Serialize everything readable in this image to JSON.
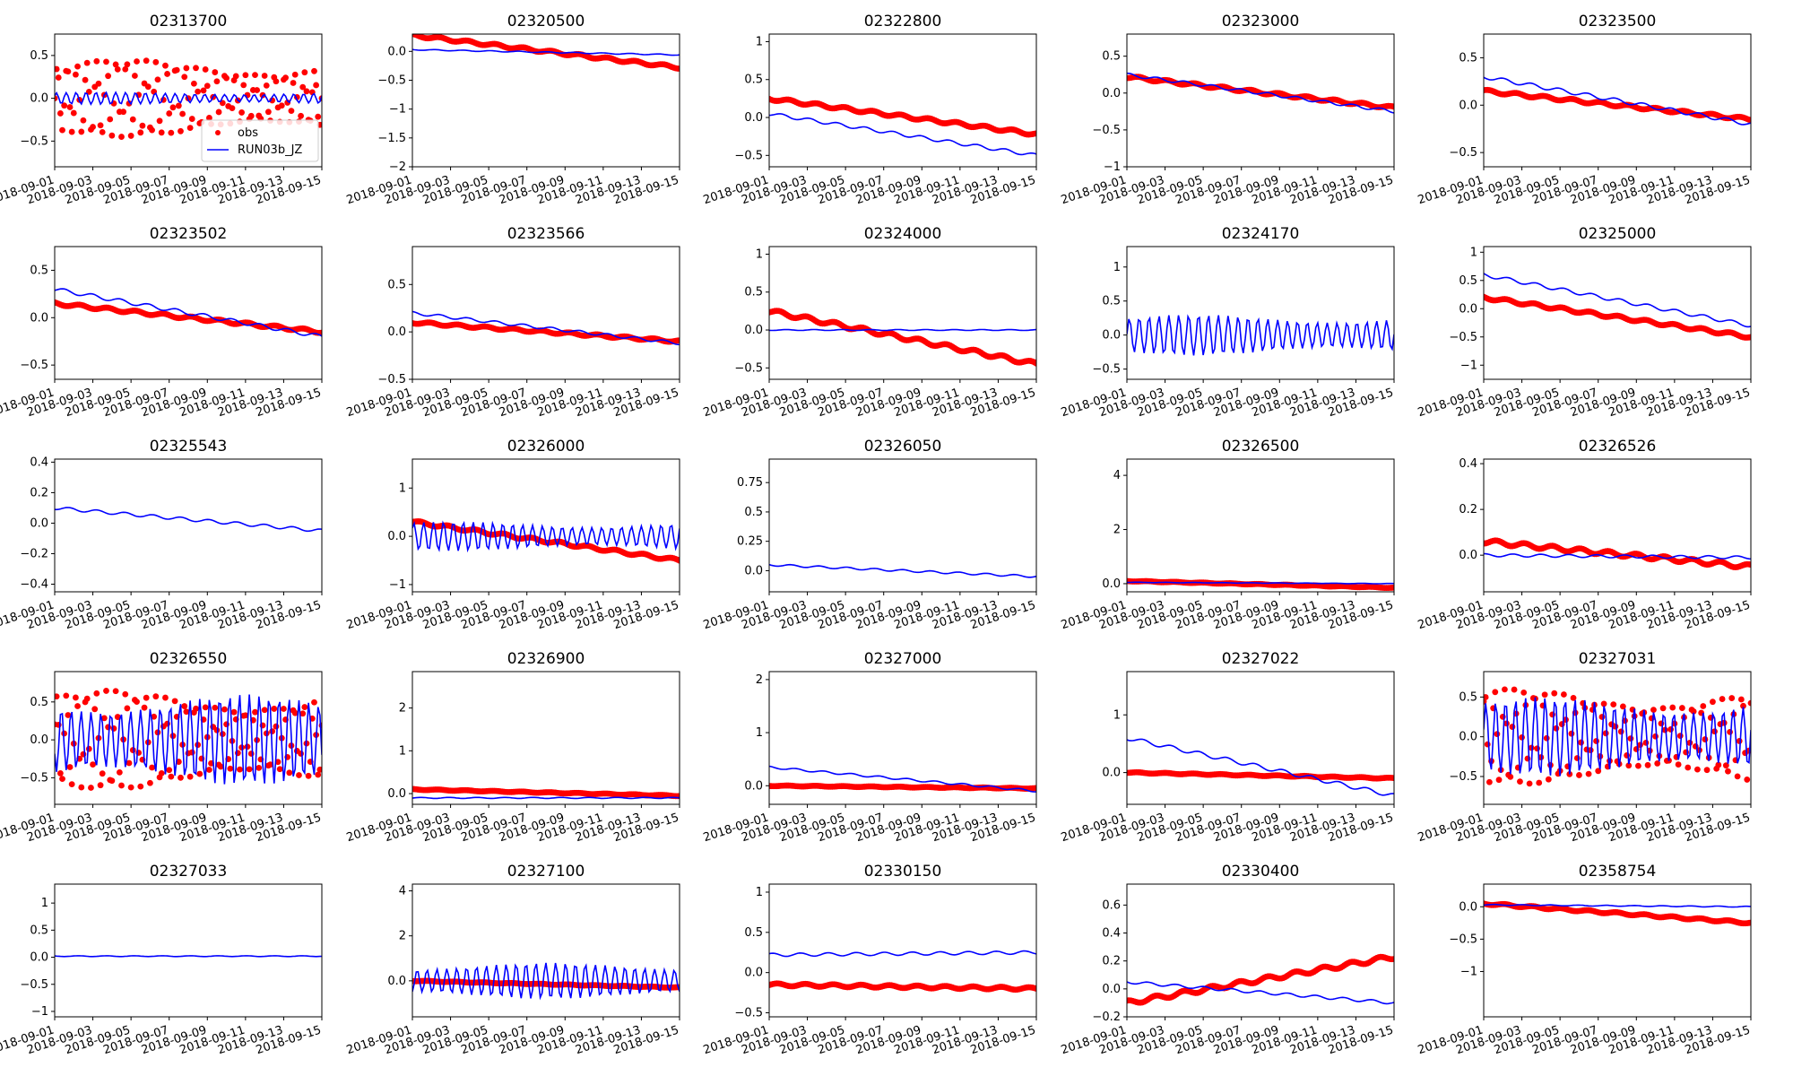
{
  "colors": {
    "obs": "#ff0000",
    "model": "#0000ff",
    "axis": "#000000",
    "background": "#ffffff"
  },
  "x_tick_labels": [
    "2018-09-01",
    "2018-09-03",
    "2018-09-05",
    "2018-09-07",
    "2018-09-09",
    "2018-09-11",
    "2018-09-13",
    "2018-09-15"
  ],
  "legend": {
    "obs": "obs",
    "model": "RUN03b_JZ"
  },
  "chart_data": [
    {
      "type": "line",
      "title": "02313700",
      "ylim": [
        -0.8,
        0.75
      ],
      "yticks": [
        -0.5,
        0,
        0.5
      ],
      "obs_shape": "wave",
      "model_shape": "wave",
      "obs_amp": 0.45,
      "model_amp": 0.07,
      "legend": true
    },
    {
      "type": "line",
      "title": "02320500",
      "ylim": [
        -2.0,
        0.3
      ],
      "yticks": [
        -2.0,
        -1.5,
        -1.0,
        -0.5,
        0.0
      ],
      "obs_start": 0.28,
      "obs_end": -0.28,
      "model_start": 0.03,
      "model_end": -0.06,
      "obs_shape": "trend",
      "model_shape": "trend"
    },
    {
      "type": "line",
      "title": "02322800",
      "ylim": [
        -0.65,
        1.1
      ],
      "yticks": [
        -0.5,
        0.0,
        0.5,
        1.0
      ],
      "obs_start": 0.25,
      "obs_end": -0.22,
      "model_start": 0.05,
      "model_end": -0.5,
      "obs_shape": "trend",
      "model_shape": "trend"
    },
    {
      "type": "line",
      "title": "02323000",
      "ylim": [
        -1.0,
        0.8
      ],
      "yticks": [
        -1.0,
        -0.5,
        0.0,
        0.5
      ],
      "obs_start": 0.22,
      "obs_end": -0.2,
      "model_start": 0.25,
      "model_end": -0.25,
      "obs_shape": "trend",
      "model_shape": "trend"
    },
    {
      "type": "line",
      "title": "02323500",
      "ylim": [
        -0.65,
        0.75
      ],
      "yticks": [
        -0.5,
        0.0,
        0.5
      ],
      "obs_start": 0.15,
      "obs_end": -0.15,
      "model_start": 0.3,
      "model_end": -0.2,
      "obs_shape": "trend",
      "model_shape": "trend"
    },
    {
      "type": "line",
      "title": "02323502",
      "ylim": [
        -0.65,
        0.75
      ],
      "yticks": [
        -0.5,
        0.0,
        0.5
      ],
      "obs_start": 0.15,
      "obs_end": -0.15,
      "model_start": 0.3,
      "model_end": -0.2,
      "obs_shape": "trend",
      "model_shape": "trend"
    },
    {
      "type": "line",
      "title": "02323566",
      "ylim": [
        -0.5,
        0.9
      ],
      "yticks": [
        -0.5,
        0.0,
        0.5
      ],
      "obs_start": 0.1,
      "obs_end": -0.1,
      "model_start": 0.2,
      "model_end": -0.12,
      "obs_shape": "trend",
      "model_shape": "trend"
    },
    {
      "type": "line",
      "title": "02324000",
      "ylim": [
        -0.65,
        1.1
      ],
      "yticks": [
        -0.5,
        0.0,
        0.5,
        1.0
      ],
      "obs_start": 0.25,
      "obs_end": -0.45,
      "model_start": 0.0,
      "model_end": 0.0,
      "obs_shape": "trend",
      "model_shape": "trend"
    },
    {
      "type": "line",
      "title": "02324170",
      "ylim": [
        -0.65,
        1.3
      ],
      "yticks": [
        -0.5,
        0.0,
        0.5,
        1.0
      ],
      "model_shape": "wave",
      "model_amp": 0.3
    },
    {
      "type": "line",
      "title": "02325000",
      "ylim": [
        -1.25,
        1.1
      ],
      "yticks": [
        -1.0,
        -0.5,
        0.0,
        0.5,
        1.0
      ],
      "obs_start": 0.2,
      "obs_end": -0.5,
      "model_start": 0.6,
      "model_end": -0.3,
      "obs_shape": "trend",
      "model_shape": "trend"
    },
    {
      "type": "line",
      "title": "02325543",
      "ylim": [
        -0.45,
        0.42
      ],
      "yticks": [
        -0.4,
        -0.2,
        0.0,
        0.2,
        0.4
      ],
      "model_shape": "trend",
      "model_start": 0.1,
      "model_end": -0.05
    },
    {
      "type": "line",
      "title": "02326000",
      "ylim": [
        -1.15,
        1.6
      ],
      "yticks": [
        -1,
        0,
        1
      ],
      "obs_start": 0.3,
      "obs_end": -0.5,
      "model_shape": "wave",
      "model_amp": 0.3,
      "obs_shape": "trend"
    },
    {
      "type": "line",
      "title": "02326050",
      "ylim": [
        -0.18,
        0.95
      ],
      "yticks": [
        0.0,
        0.25,
        0.5,
        0.75
      ],
      "model_shape": "trend",
      "model_start": 0.05,
      "model_end": -0.05
    },
    {
      "type": "line",
      "title": "02326500",
      "ylim": [
        -0.3,
        4.6
      ],
      "yticks": [
        0,
        2,
        4
      ],
      "obs_start": 0.1,
      "obs_end": -0.15,
      "model_start": 0.05,
      "model_end": 0.0,
      "obs_shape": "trend",
      "model_shape": "trend"
    },
    {
      "type": "line",
      "title": "02326526",
      "ylim": [
        -0.16,
        0.42
      ],
      "yticks": [
        0.0,
        0.2,
        0.4
      ],
      "obs_start": 0.06,
      "obs_end": -0.05,
      "model_start": 0.0,
      "model_end": -0.01,
      "obs_shape": "trend",
      "model_shape": "trend"
    },
    {
      "type": "line",
      "title": "02326550",
      "ylim": [
        -0.85,
        0.9
      ],
      "yticks": [
        -0.5,
        0.0,
        0.5
      ],
      "obs_shape": "wave",
      "model_shape": "wave",
      "obs_amp": 0.65,
      "model_amp": 0.6
    },
    {
      "type": "line",
      "title": "02326900",
      "ylim": [
        -0.25,
        2.85
      ],
      "yticks": [
        0,
        1,
        2
      ],
      "obs_start": 0.1,
      "obs_end": -0.05,
      "model_start": -0.1,
      "model_end": -0.1,
      "obs_shape": "trend",
      "model_shape": "trend"
    },
    {
      "type": "line",
      "title": "02327000",
      "ylim": [
        -0.35,
        2.15
      ],
      "yticks": [
        0,
        1,
        2
      ],
      "obs_start": 0.0,
      "obs_end": -0.05,
      "model_start": 0.35,
      "model_end": -0.1,
      "obs_shape": "trend",
      "model_shape": "trend"
    },
    {
      "type": "line",
      "title": "02327022",
      "ylim": [
        -0.55,
        1.75
      ],
      "yticks": [
        0,
        1
      ],
      "obs_start": 0.0,
      "obs_end": -0.1,
      "model_start": 0.6,
      "model_end": -0.4,
      "obs_shape": "trend",
      "model_shape": "trend"
    },
    {
      "type": "line",
      "title": "02327031",
      "ylim": [
        -0.85,
        0.82
      ],
      "yticks": [
        -0.5,
        0.0,
        0.5
      ],
      "obs_shape": "wave",
      "model_shape": "wave",
      "obs_amp": 0.6,
      "model_amp": 0.5
    },
    {
      "type": "line",
      "title": "02327033",
      "ylim": [
        -1.1,
        1.35
      ],
      "yticks": [
        -1.0,
        -0.5,
        0.0,
        0.5,
        1.0
      ],
      "model_shape": "trend",
      "model_start": 0.02,
      "model_end": 0.02
    },
    {
      "type": "line",
      "title": "02327100",
      "ylim": [
        -1.6,
        4.3
      ],
      "yticks": [
        0,
        2,
        4
      ],
      "obs_start": 0.0,
      "obs_end": -0.3,
      "model_shape": "wave",
      "model_amp": 0.8,
      "obs_shape": "trend"
    },
    {
      "type": "line",
      "title": "02330150",
      "ylim": [
        -0.55,
        1.1
      ],
      "yticks": [
        -0.5,
        0.0,
        0.5,
        1.0
      ],
      "obs_start": -0.15,
      "obs_end": -0.2,
      "model_start": 0.22,
      "model_end": 0.25,
      "obs_shape": "trend",
      "model_shape": "trend"
    },
    {
      "type": "line",
      "title": "02330400",
      "ylim": [
        -0.2,
        0.75
      ],
      "yticks": [
        -0.2,
        0.0,
        0.2,
        0.4,
        0.6
      ],
      "obs_start": -0.1,
      "obs_end": 0.23,
      "model_start": 0.05,
      "model_end": -0.1,
      "obs_shape": "trend",
      "model_shape": "trend"
    },
    {
      "type": "line",
      "title": "02358754",
      "ylim": [
        -1.7,
        0.35
      ],
      "yticks": [
        -1.0,
        -0.5,
        0.0
      ],
      "obs_start": 0.05,
      "obs_end": -0.25,
      "model_start": 0.03,
      "model_end": 0.0,
      "obs_shape": "trend",
      "model_shape": "trend"
    }
  ]
}
